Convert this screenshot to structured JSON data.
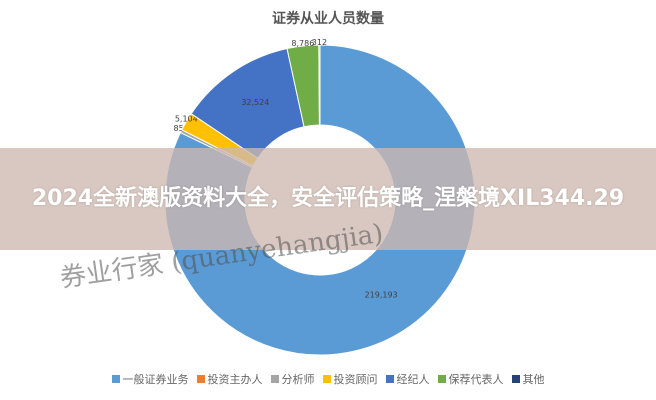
{
  "chart_data": {
    "type": "pie",
    "donut": true,
    "title": "证券从业人员数量",
    "categories": [
      "一般证券业务",
      "投资主办人",
      "分析师",
      "投资顾问",
      "经纪人",
      "保荐代表人",
      "其他"
    ],
    "values": [
      219193,
      null,
      853,
      5104,
      32524,
      8786,
      312
    ],
    "labels": [
      "219,193",
      "",
      "853",
      "5,104",
      "32,524",
      "8,786",
      "312"
    ],
    "colors": [
      "#5b9bd5",
      "#ed7d31",
      "#a5a5a5",
      "#ffc000",
      "#4472c4",
      "#70ad47",
      "#264478"
    ],
    "legend_position": "bottom"
  },
  "overlay": {
    "headline": "2024全新澳版资料大全，安全评估策略_涅槃境XIL344.29"
  },
  "watermark": "券业行家 (quanyehangjia)"
}
